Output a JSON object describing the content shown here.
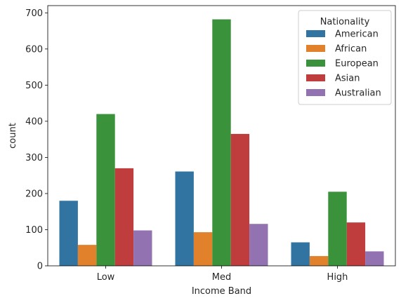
{
  "chart_data": {
    "type": "bar",
    "categories": [
      "Low",
      "Med",
      "High"
    ],
    "xlabel": "Income Band",
    "ylabel": "count",
    "ylim": [
      0,
      720
    ],
    "yticks": [
      0,
      100,
      200,
      300,
      400,
      500,
      600,
      700
    ],
    "grid": false,
    "legend": {
      "title": "Nationality",
      "placement": "top-right"
    },
    "series": [
      {
        "name": "American",
        "color": "#3274a1",
        "values": [
          180,
          261,
          65
        ]
      },
      {
        "name": "African",
        "color": "#e1812c",
        "values": [
          58,
          93,
          27
        ]
      },
      {
        "name": "European",
        "color": "#3a923a",
        "values": [
          420,
          682,
          205
        ]
      },
      {
        "name": "Asian",
        "color": "#c03d3e",
        "values": [
          270,
          365,
          120
        ]
      },
      {
        "name": "Australian",
        "color": "#9372b2",
        "values": [
          98,
          116,
          40
        ]
      }
    ]
  }
}
